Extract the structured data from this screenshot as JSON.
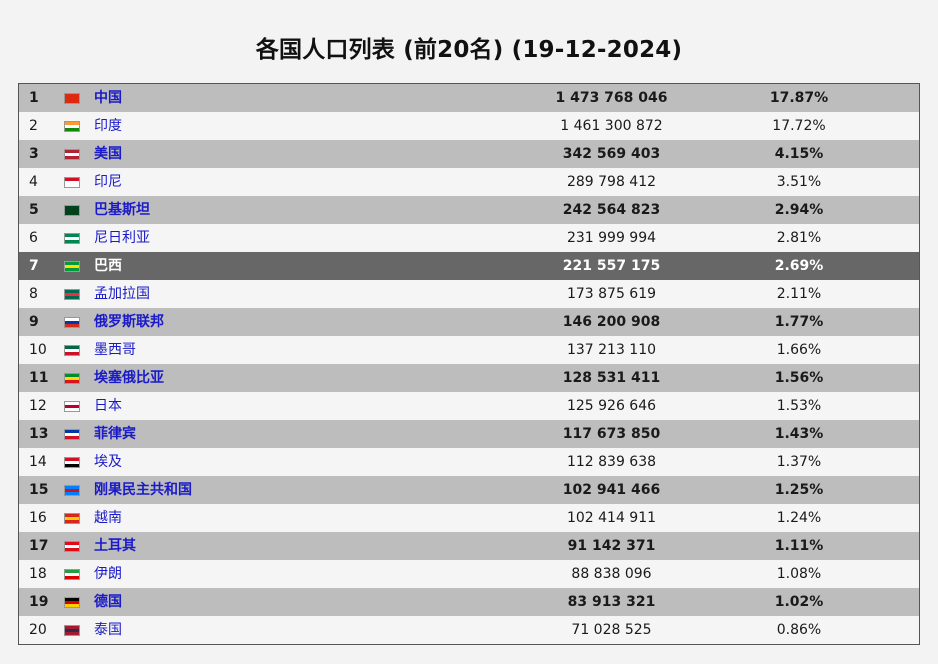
{
  "title": "各国人口列表 (前20名) (19-12-2024)",
  "highlight_row": 7,
  "rows": [
    {
      "rank": "1",
      "country": "中国",
      "population": "1 473 768 046",
      "percent": "17.87%",
      "flag": "china-flag-icon",
      "colors": [
        "#de2910",
        "#de2910",
        "#de2910"
      ]
    },
    {
      "rank": "2",
      "country": "印度",
      "population": "1 461 300 872",
      "percent": "17.72%",
      "flag": "india-flag-icon",
      "colors": [
        "#ff9933",
        "#ffffff",
        "#138808"
      ]
    },
    {
      "rank": "3",
      "country": "美国",
      "population": "342 569 403",
      "percent": "4.15%",
      "flag": "usa-flag-icon",
      "colors": [
        "#b22234",
        "#ffffff",
        "#b22234"
      ]
    },
    {
      "rank": "4",
      "country": "印尼",
      "population": "289 798 412",
      "percent": "3.51%",
      "flag": "indonesia-flag-icon",
      "colors": [
        "#ce1126",
        "#ffffff",
        "#ffffff"
      ]
    },
    {
      "rank": "5",
      "country": "巴基斯坦",
      "population": "242 564 823",
      "percent": "2.94%",
      "flag": "pakistan-flag-icon",
      "colors": [
        "#01411c",
        "#01411c",
        "#01411c"
      ]
    },
    {
      "rank": "6",
      "country": "尼日利亚",
      "population": "231 999 994",
      "percent": "2.81%",
      "flag": "nigeria-flag-icon",
      "colors": [
        "#008751",
        "#ffffff",
        "#008751"
      ]
    },
    {
      "rank": "7",
      "country": "巴西",
      "population": "221 557 175",
      "percent": "2.69%",
      "flag": "brazil-flag-icon",
      "colors": [
        "#009c3b",
        "#ffdf00",
        "#009c3b"
      ]
    },
    {
      "rank": "8",
      "country": "孟加拉国",
      "population": "173 875 619",
      "percent": "2.11%",
      "flag": "bangladesh-flag-icon",
      "colors": [
        "#006a4e",
        "#f42a41",
        "#006a4e"
      ]
    },
    {
      "rank": "9",
      "country": "俄罗斯联邦",
      "population": "146 200 908",
      "percent": "1.77%",
      "flag": "russia-flag-icon",
      "colors": [
        "#ffffff",
        "#0039a6",
        "#d52b1e"
      ]
    },
    {
      "rank": "10",
      "country": "墨西哥",
      "population": "137 213 110",
      "percent": "1.66%",
      "flag": "mexico-flag-icon",
      "colors": [
        "#006847",
        "#ffffff",
        "#ce1126"
      ]
    },
    {
      "rank": "11",
      "country": "埃塞俄比亚",
      "population": "128 531 411",
      "percent": "1.56%",
      "flag": "ethiopia-flag-icon",
      "colors": [
        "#078930",
        "#fcdd09",
        "#da121a"
      ]
    },
    {
      "rank": "12",
      "country": "日本",
      "population": "125 926 646",
      "percent": "1.53%",
      "flag": "japan-flag-icon",
      "colors": [
        "#ffffff",
        "#bc002d",
        "#ffffff"
      ]
    },
    {
      "rank": "13",
      "country": "菲律宾",
      "population": "117 673 850",
      "percent": "1.43%",
      "flag": "philippines-flag-icon",
      "colors": [
        "#0038a8",
        "#ffffff",
        "#ce1126"
      ]
    },
    {
      "rank": "14",
      "country": "埃及",
      "population": "112 839 638",
      "percent": "1.37%",
      "flag": "egypt-flag-icon",
      "colors": [
        "#ce1126",
        "#ffffff",
        "#000000"
      ]
    },
    {
      "rank": "15",
      "country": "刚果民主共和国",
      "population": "102 941 466",
      "percent": "1.25%",
      "flag": "drc-flag-icon",
      "colors": [
        "#007fff",
        "#ce1021",
        "#007fff"
      ]
    },
    {
      "rank": "16",
      "country": "越南",
      "population": "102 414 911",
      "percent": "1.24%",
      "flag": "vietnam-flag-icon",
      "colors": [
        "#da251d",
        "#ffcd00",
        "#da251d"
      ]
    },
    {
      "rank": "17",
      "country": "土耳其",
      "population": "91 142 371",
      "percent": "1.11%",
      "flag": "turkey-flag-icon",
      "colors": [
        "#e30a17",
        "#ffffff",
        "#e30a17"
      ]
    },
    {
      "rank": "18",
      "country": "伊朗",
      "population": "88 838 096",
      "percent": "1.08%",
      "flag": "iran-flag-icon",
      "colors": [
        "#239f40",
        "#ffffff",
        "#da0000"
      ]
    },
    {
      "rank": "19",
      "country": "德国",
      "population": "83 913 321",
      "percent": "1.02%",
      "flag": "germany-flag-icon",
      "colors": [
        "#000000",
        "#dd0000",
        "#ffce00"
      ]
    },
    {
      "rank": "20",
      "country": "泰国",
      "population": "71 028 525",
      "percent": "0.86%",
      "flag": "thailand-flag-icon",
      "colors": [
        "#a51931",
        "#2d2a4a",
        "#a51931"
      ]
    }
  ]
}
